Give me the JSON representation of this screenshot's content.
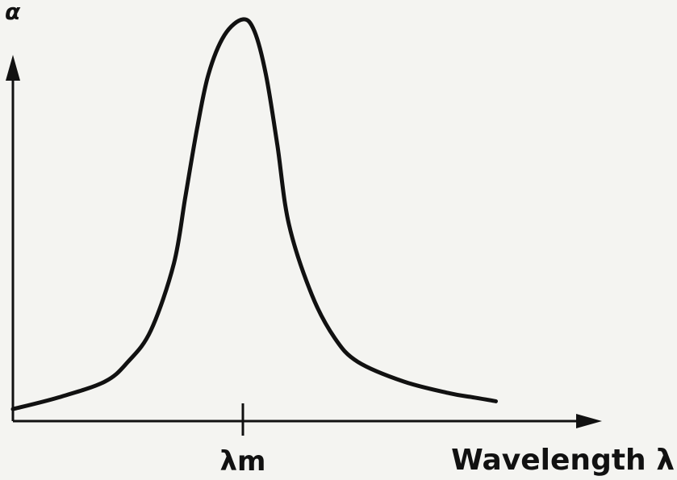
{
  "chart_data": {
    "type": "line",
    "title": "",
    "xlabel": "Wavelength λ",
    "ylabel": "α",
    "x_ticks": [
      {
        "label": "λm",
        "x": 0
      }
    ],
    "xlim": [
      -1.0,
      1.4
    ],
    "ylim": [
      0,
      1.0
    ],
    "grid": false,
    "legend": "none",
    "series": [
      {
        "values": [
          {
            "x": -1.0,
            "y": 0.01
          },
          {
            "x": -0.8,
            "y": 0.04
          },
          {
            "x": -0.6,
            "y": 0.08
          },
          {
            "x": -0.5,
            "y": 0.13
          },
          {
            "x": -0.4,
            "y": 0.21
          },
          {
            "x": -0.3,
            "y": 0.38
          },
          {
            "x": -0.25,
            "y": 0.55
          },
          {
            "x": -0.2,
            "y": 0.72
          },
          {
            "x": -0.15,
            "y": 0.86
          },
          {
            "x": -0.08,
            "y": 0.96
          },
          {
            "x": 0.0,
            "y": 1.0
          },
          {
            "x": 0.05,
            "y": 0.97
          },
          {
            "x": 0.1,
            "y": 0.86
          },
          {
            "x": 0.15,
            "y": 0.68
          },
          {
            "x": 0.2,
            "y": 0.48
          },
          {
            "x": 0.3,
            "y": 0.3
          },
          {
            "x": 0.4,
            "y": 0.19
          },
          {
            "x": 0.5,
            "y": 0.13
          },
          {
            "x": 0.7,
            "y": 0.08
          },
          {
            "x": 0.9,
            "y": 0.05
          },
          {
            "x": 1.0,
            "y": 0.04
          },
          {
            "x": 1.1,
            "y": 0.03
          }
        ]
      }
    ]
  },
  "colors": {
    "ink": "#111111",
    "background": "#f4f4f1"
  }
}
